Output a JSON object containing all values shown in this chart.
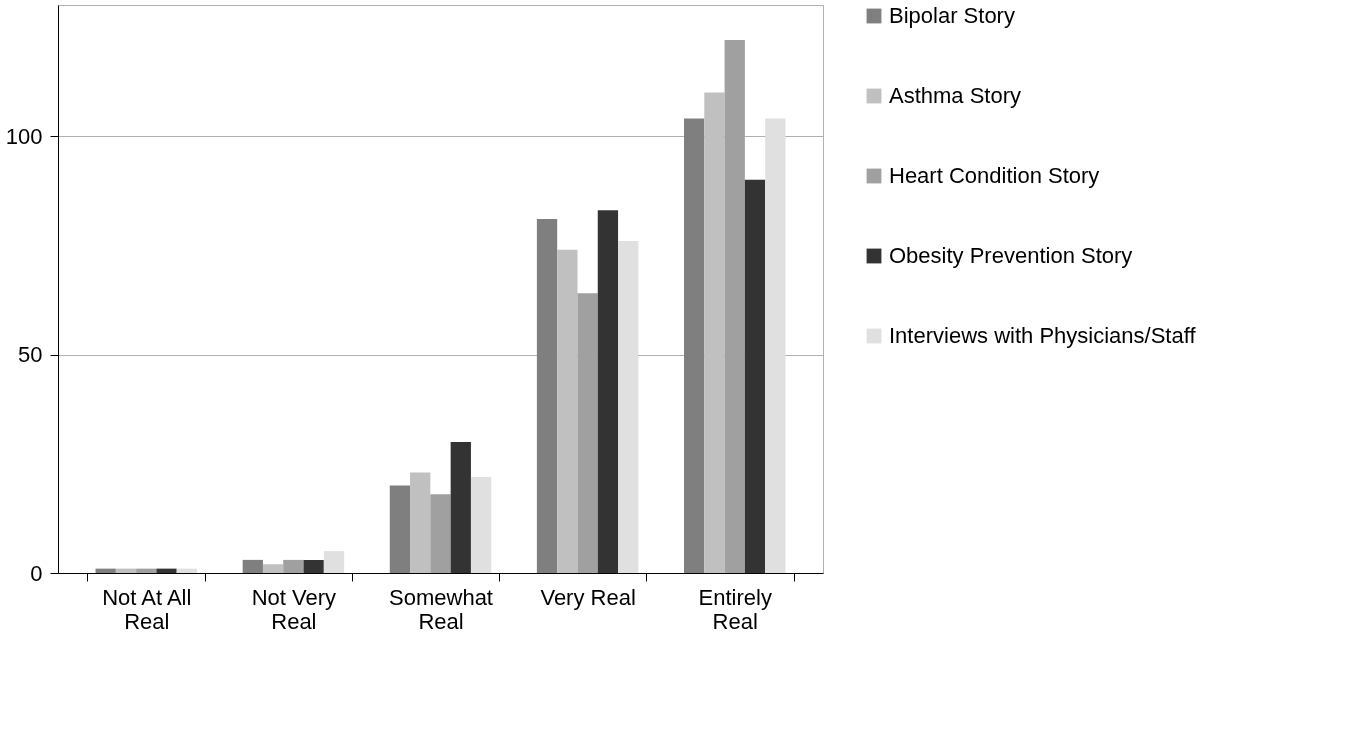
{
  "chart_data": {
    "type": "bar",
    "categories": [
      "Not At All Real",
      "Not Very Real",
      "Somewhat Real",
      "Very Real",
      "Entirely Real"
    ],
    "series": [
      {
        "name": "Bipolar Story",
        "color": "#7f7f7f",
        "values": [
          1,
          3,
          20,
          81,
          104
        ]
      },
      {
        "name": "Asthma Story",
        "color": "#c0c0c0",
        "values": [
          1,
          2,
          23,
          74,
          110
        ]
      },
      {
        "name": "Heart Condition Story",
        "color": "#a0a0a0",
        "values": [
          1,
          3,
          18,
          64,
          122
        ]
      },
      {
        "name": "Obesity Prevention Story",
        "color": "#333333",
        "values": [
          1,
          3,
          30,
          83,
          90
        ]
      },
      {
        "name": "Interviews with Physicians/Staff",
        "color": "#e0e0e0",
        "values": [
          1,
          5,
          22,
          76,
          104
        ]
      }
    ],
    "ylim": [
      0,
      130
    ],
    "yticks": [
      0,
      50,
      100
    ],
    "grid": "y",
    "legend": "right"
  }
}
